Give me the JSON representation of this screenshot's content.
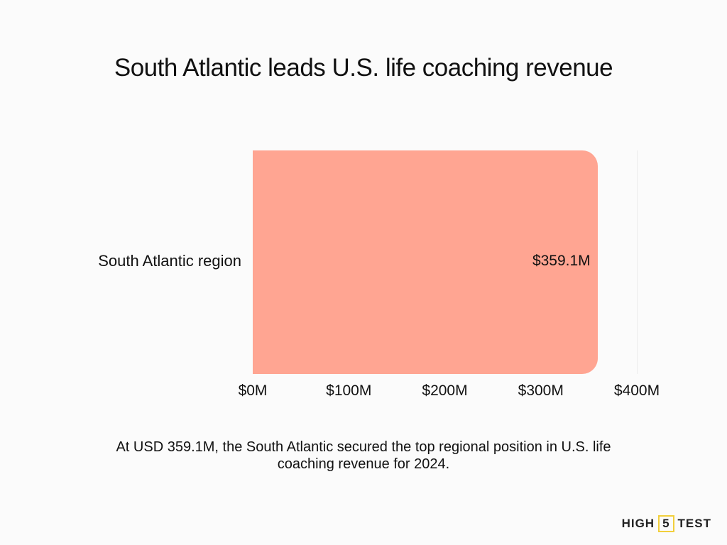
{
  "title": "South Atlantic leads U.S. life coaching revenue",
  "chart_data": {
    "type": "bar",
    "orientation": "horizontal",
    "title": "South Atlantic leads U.S. life coaching revenue",
    "categories": [
      "South Atlantic region"
    ],
    "values": [
      359.1
    ],
    "value_labels": [
      "$359.1M"
    ],
    "xlabel": "",
    "ylabel": "",
    "xlim": [
      0,
      400
    ],
    "x_ticks": [
      0,
      100,
      200,
      300,
      400
    ],
    "x_tick_labels": [
      "$0M",
      "$100M",
      "$200M",
      "$300M",
      "$400M"
    ],
    "units": "USD millions",
    "grid": true,
    "legend": null,
    "bar_color": "#ffa592"
  },
  "caption": {
    "line1": "At USD 359.1M, the South Atlantic secured the top regional position in U.S. life",
    "line2": "coaching revenue for 2024."
  },
  "logo": {
    "left": "HIGH",
    "middle": "5",
    "right": "TEST",
    "accent_color": "#f2cf3c"
  }
}
